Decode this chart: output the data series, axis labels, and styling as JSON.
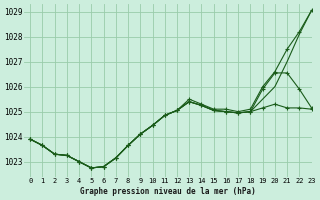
{
  "title": "Graphe pression niveau de la mer (hPa)",
  "bg_color": "#cceedd",
  "grid_color": "#99ccaa",
  "line_color": "#1a5c1a",
  "xlim": [
    -0.5,
    23
  ],
  "ylim": [
    1022.4,
    1029.3
  ],
  "yticks": [
    1023,
    1024,
    1025,
    1026,
    1027,
    1028,
    1029
  ],
  "xtick_labels": [
    "0",
    "1",
    "2",
    "3",
    "4",
    "5",
    "6",
    "7",
    "8",
    "9",
    "10",
    "11",
    "12",
    "13",
    "14",
    "15",
    "16",
    "17",
    "18",
    "19",
    "20",
    "21",
    "22",
    "23"
  ],
  "series": [
    {
      "x": [
        0,
        1,
        2,
        3,
        4,
        5,
        6,
        7,
        8,
        9,
        10,
        11,
        12,
        13,
        14,
        15,
        16,
        17,
        18,
        19,
        20,
        21,
        22,
        23
      ],
      "y": [
        1023.9,
        1023.65,
        1023.3,
        1023.25,
        1023.0,
        1022.75,
        1022.8,
        1023.15,
        1023.65,
        1024.1,
        1024.45,
        1024.85,
        1025.05,
        1025.5,
        1025.3,
        1025.1,
        1025.1,
        1025.0,
        1025.1,
        1026.0,
        1026.6,
        1027.5,
        1028.2,
        1029.05
      ],
      "markers": true
    },
    {
      "x": [
        0,
        1,
        2,
        3,
        4,
        5,
        6,
        7,
        8,
        9,
        10,
        11,
        12,
        13,
        14,
        15,
        16,
        17,
        18,
        19,
        20,
        21,
        22,
        23
      ],
      "y": [
        1023.9,
        1023.65,
        1023.3,
        1023.25,
        1023.0,
        1022.75,
        1022.8,
        1023.15,
        1023.65,
        1024.1,
        1024.45,
        1024.85,
        1025.05,
        1025.4,
        1025.25,
        1025.05,
        1025.0,
        1024.95,
        1025.0,
        1025.5,
        1026.0,
        1027.0,
        1028.1,
        1029.05
      ],
      "markers": false
    },
    {
      "x": [
        0,
        1,
        2,
        3,
        4,
        5,
        6,
        7,
        8,
        9,
        10,
        11,
        12,
        13,
        14,
        15,
        16,
        17,
        18,
        19,
        20,
        21,
        22,
        23
      ],
      "y": [
        1023.9,
        1023.65,
        1023.3,
        1023.25,
        1023.0,
        1022.75,
        1022.8,
        1023.15,
        1023.65,
        1024.1,
        1024.45,
        1024.85,
        1025.05,
        1025.4,
        1025.25,
        1025.05,
        1025.0,
        1024.95,
        1025.0,
        1025.15,
        1025.3,
        1025.15,
        1025.15,
        1025.1
      ],
      "markers": true
    },
    {
      "x": [
        0,
        1,
        2,
        3,
        4,
        5,
        6,
        7,
        8,
        9,
        10,
        11,
        12,
        13,
        14,
        15,
        16,
        17,
        18,
        19,
        20,
        21,
        22,
        23
      ],
      "y": [
        1023.9,
        1023.65,
        1023.3,
        1023.25,
        1023.0,
        1022.75,
        1022.8,
        1023.15,
        1023.65,
        1024.1,
        1024.45,
        1024.85,
        1025.05,
        1025.4,
        1025.25,
        1025.05,
        1025.0,
        1024.95,
        1025.0,
        1025.9,
        1026.55,
        1026.55,
        1025.9,
        1025.15
      ],
      "markers": true
    }
  ]
}
